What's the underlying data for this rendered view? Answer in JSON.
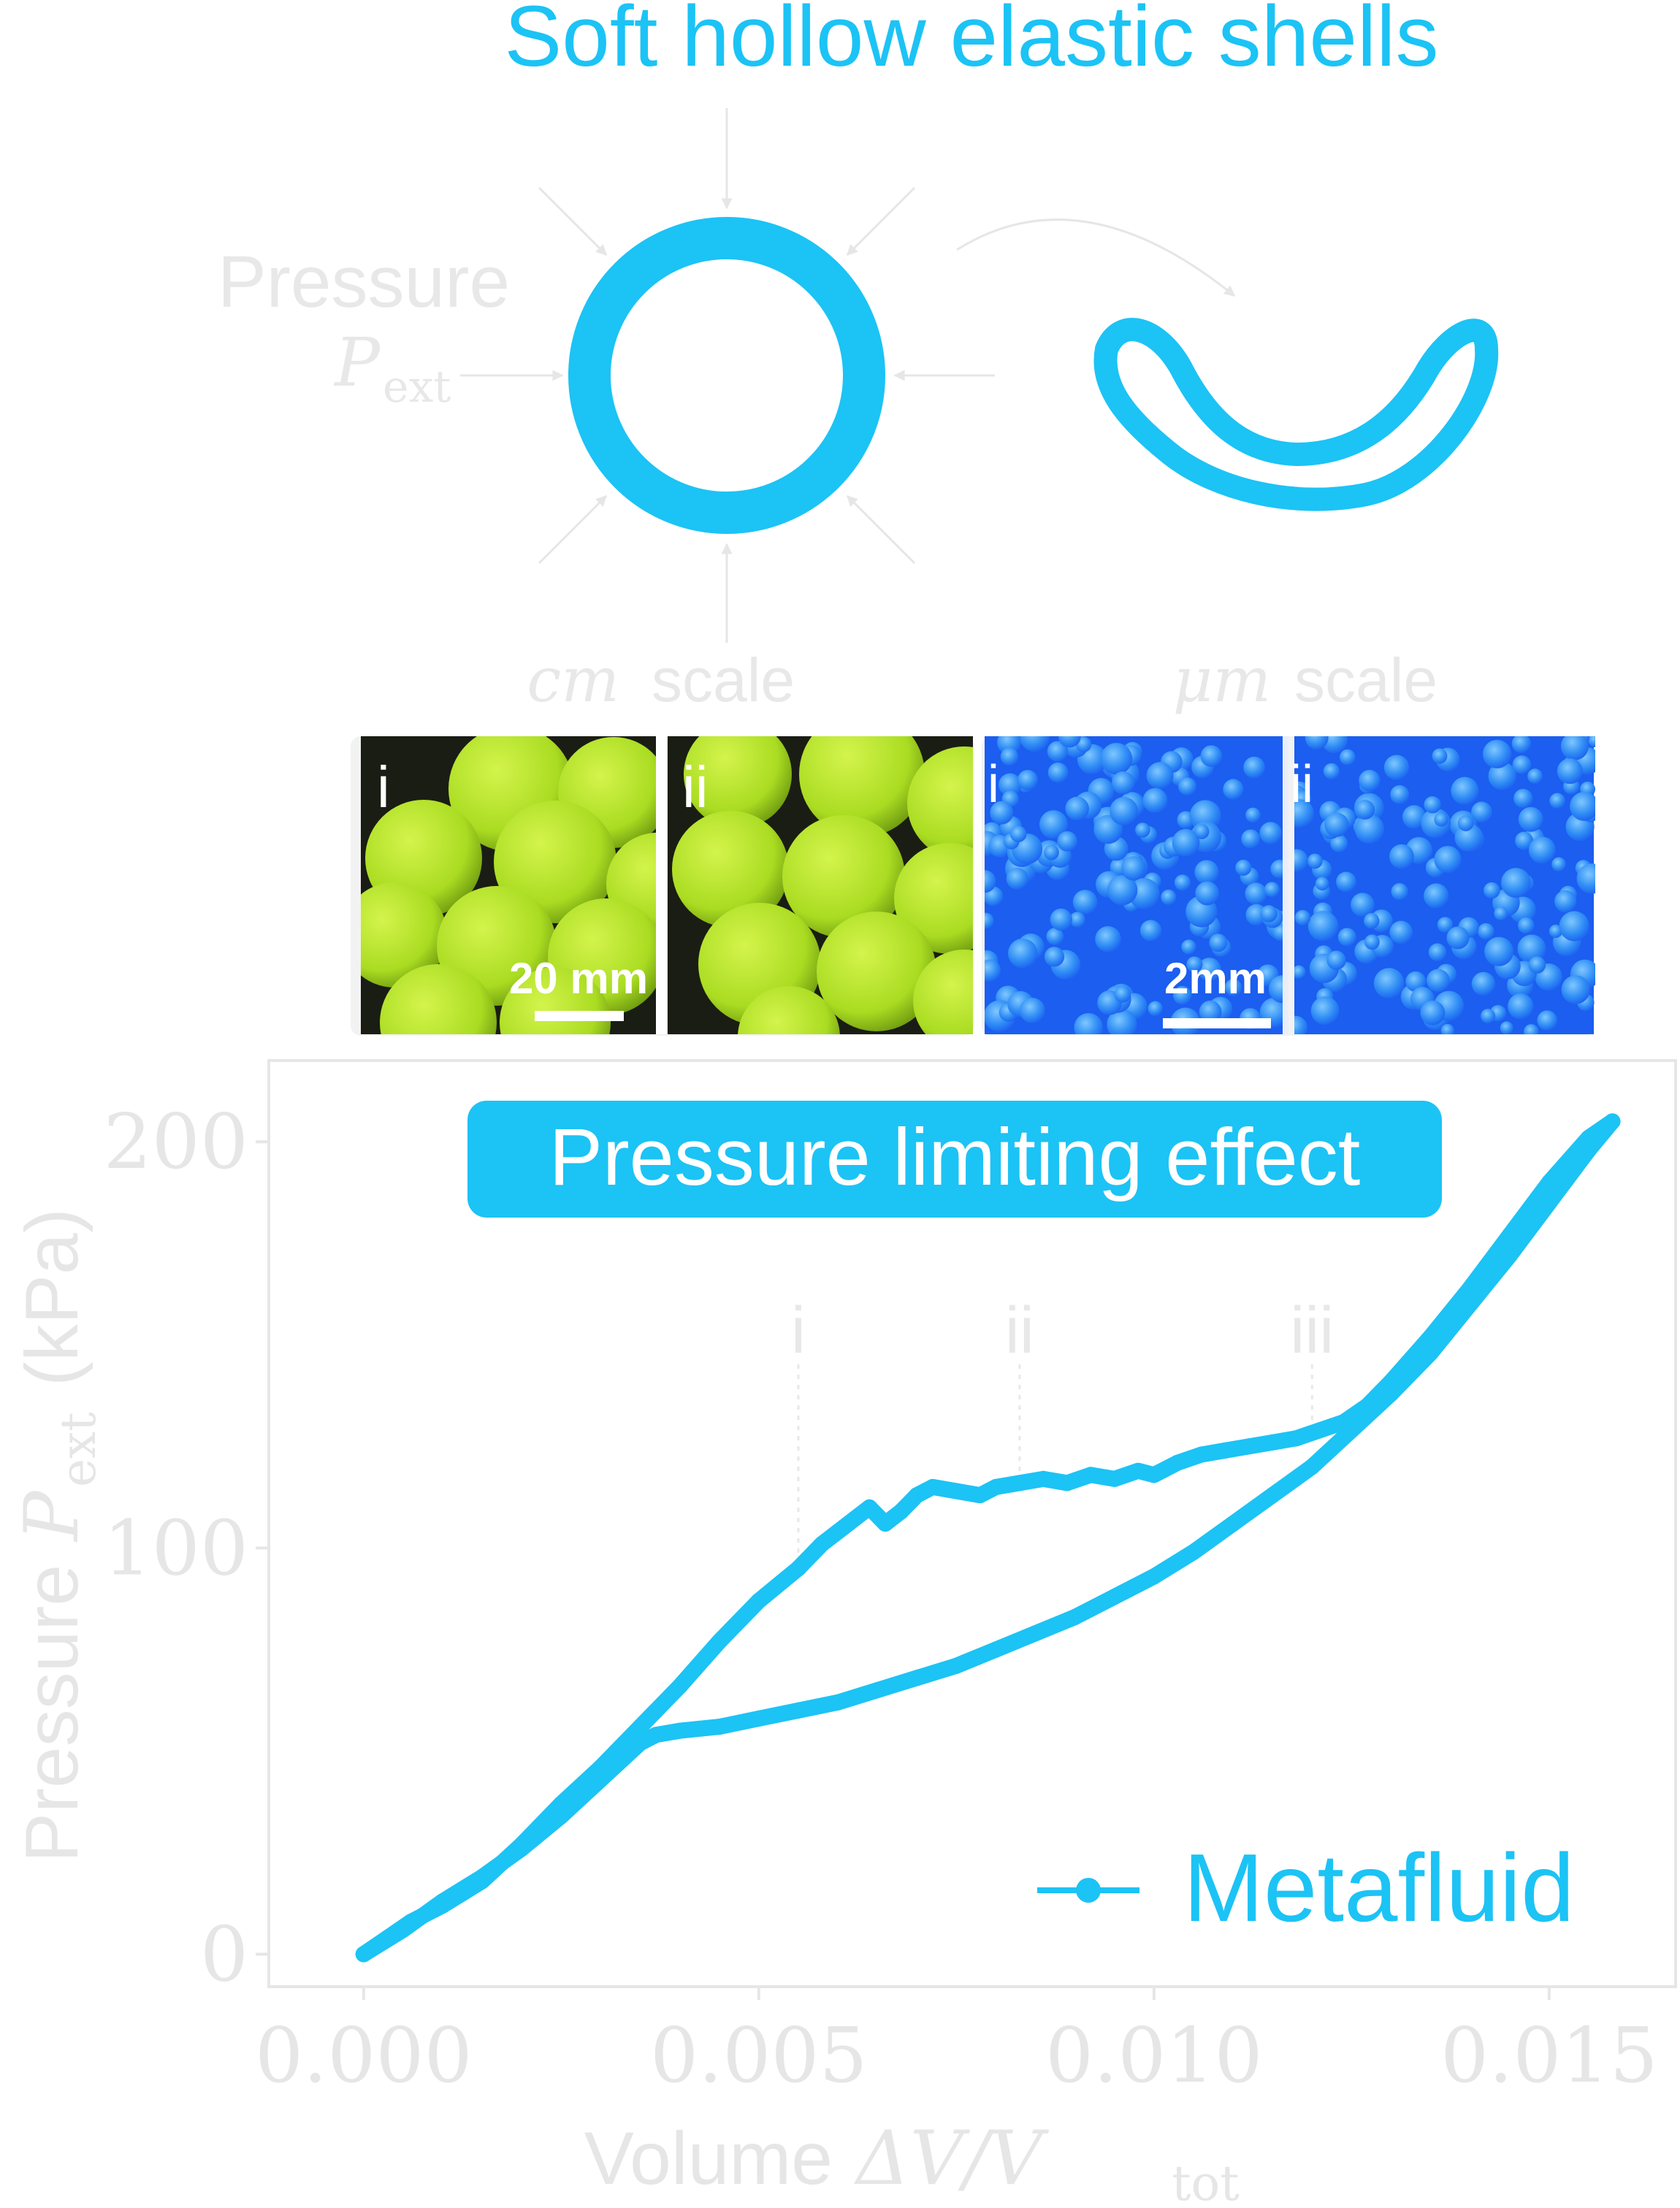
{
  "header": {
    "title": "Soft hollow elastic shells",
    "pressure_label": "Pressure",
    "pressure_symbol": "P",
    "pressure_subscript": "ext",
    "cm_scale": {
      "symbol": "cm",
      "text": "scale"
    },
    "um_scale": {
      "symbol": "μm",
      "text": "scale"
    }
  },
  "photos": {
    "cm_panels": [
      {
        "label": "i"
      },
      {
        "label": "ii"
      }
    ],
    "cm_scalebar": "20 mm",
    "um_panels": [
      {
        "label": "i"
      },
      {
        "label": "ii"
      }
    ],
    "um_scalebar": "2mm"
  },
  "colors": {
    "accent": "#1cc3f5",
    "axis": "#e6e6e6",
    "guide": "#e8e8e8",
    "cm_photo_ball": "#b2e224",
    "cm_photo_bg": "#1a1d14",
    "um_photo_bg": "#1b5ef0"
  },
  "chart_data": {
    "type": "line",
    "banner": "Pressure limiting effect",
    "xlabel": {
      "text": "Volume",
      "math": "ΔV/V",
      "sub": "tot"
    },
    "ylabel": {
      "text": "Pressure",
      "math": "P",
      "sub": "ext",
      "unit": "(kPa)"
    },
    "xlim": [
      -0.0012,
      0.0166
    ],
    "ylim": [
      -8,
      220
    ],
    "xticks": [
      "0.000",
      "0.005",
      "0.010",
      "0.015"
    ],
    "xtick_values": [
      0,
      0.005,
      0.01,
      0.015
    ],
    "yticks": [
      "0",
      "100",
      "200"
    ],
    "ytick_values": [
      0,
      100,
      200
    ],
    "grid": false,
    "legend": {
      "position": "bottom-right"
    },
    "markers": [
      {
        "label": "i",
        "x": 0.0055,
        "y": 93
      },
      {
        "label": "ii",
        "x": 0.0083,
        "y": 116
      },
      {
        "label": "iii",
        "x": 0.012,
        "y": 128
      }
    ],
    "series": [
      {
        "name": "Metafluid",
        "loading": [
          [
            0.0,
            0
          ],
          [
            0.0003,
            4
          ],
          [
            0.0006,
            8
          ],
          [
            0.001,
            12
          ],
          [
            0.0015,
            18
          ],
          [
            0.002,
            27
          ],
          [
            0.0025,
            37
          ],
          [
            0.003,
            46
          ],
          [
            0.0035,
            56
          ],
          [
            0.004,
            66
          ],
          [
            0.0045,
            77
          ],
          [
            0.005,
            87
          ],
          [
            0.0055,
            95
          ],
          [
            0.0058,
            101
          ],
          [
            0.006,
            104
          ],
          [
            0.0062,
            107
          ],
          [
            0.0064,
            110
          ],
          [
            0.0066,
            106
          ],
          [
            0.0068,
            109
          ],
          [
            0.007,
            113
          ],
          [
            0.0072,
            115
          ],
          [
            0.0075,
            114
          ],
          [
            0.0078,
            113
          ],
          [
            0.008,
            115
          ],
          [
            0.0083,
            116
          ],
          [
            0.0086,
            117
          ],
          [
            0.0089,
            116
          ],
          [
            0.0092,
            118
          ],
          [
            0.0095,
            117
          ],
          [
            0.0098,
            119
          ],
          [
            0.01,
            118
          ],
          [
            0.0103,
            121
          ],
          [
            0.0106,
            123
          ],
          [
            0.0109,
            124
          ],
          [
            0.0112,
            125
          ],
          [
            0.0115,
            126
          ],
          [
            0.0118,
            127
          ],
          [
            0.0121,
            129
          ],
          [
            0.0124,
            131
          ],
          [
            0.0127,
            135
          ],
          [
            0.013,
            141
          ],
          [
            0.0135,
            152
          ],
          [
            0.014,
            164
          ],
          [
            0.0145,
            177
          ],
          [
            0.015,
            190
          ],
          [
            0.0155,
            201
          ],
          [
            0.0158,
            205
          ]
        ],
        "unloading": [
          [
            0.0158,
            205
          ],
          [
            0.0155,
            198
          ],
          [
            0.015,
            185
          ],
          [
            0.0145,
            172
          ],
          [
            0.014,
            160
          ],
          [
            0.0135,
            148
          ],
          [
            0.013,
            138
          ],
          [
            0.0125,
            129
          ],
          [
            0.012,
            120
          ],
          [
            0.0115,
            113
          ],
          [
            0.011,
            106
          ],
          [
            0.0105,
            99
          ],
          [
            0.01,
            93
          ],
          [
            0.0095,
            88
          ],
          [
            0.009,
            83
          ],
          [
            0.0085,
            79
          ],
          [
            0.008,
            75
          ],
          [
            0.0075,
            71
          ],
          [
            0.007,
            68
          ],
          [
            0.0065,
            65
          ],
          [
            0.006,
            62
          ],
          [
            0.0055,
            60
          ],
          [
            0.005,
            58
          ],
          [
            0.0045,
            56
          ],
          [
            0.004,
            55
          ],
          [
            0.0037,
            54
          ],
          [
            0.0035,
            52
          ],
          [
            0.003,
            43
          ],
          [
            0.0025,
            34
          ],
          [
            0.002,
            26
          ],
          [
            0.0015,
            19
          ],
          [
            0.001,
            13
          ],
          [
            0.0005,
            6
          ],
          [
            0.0,
            0
          ]
        ]
      }
    ]
  }
}
